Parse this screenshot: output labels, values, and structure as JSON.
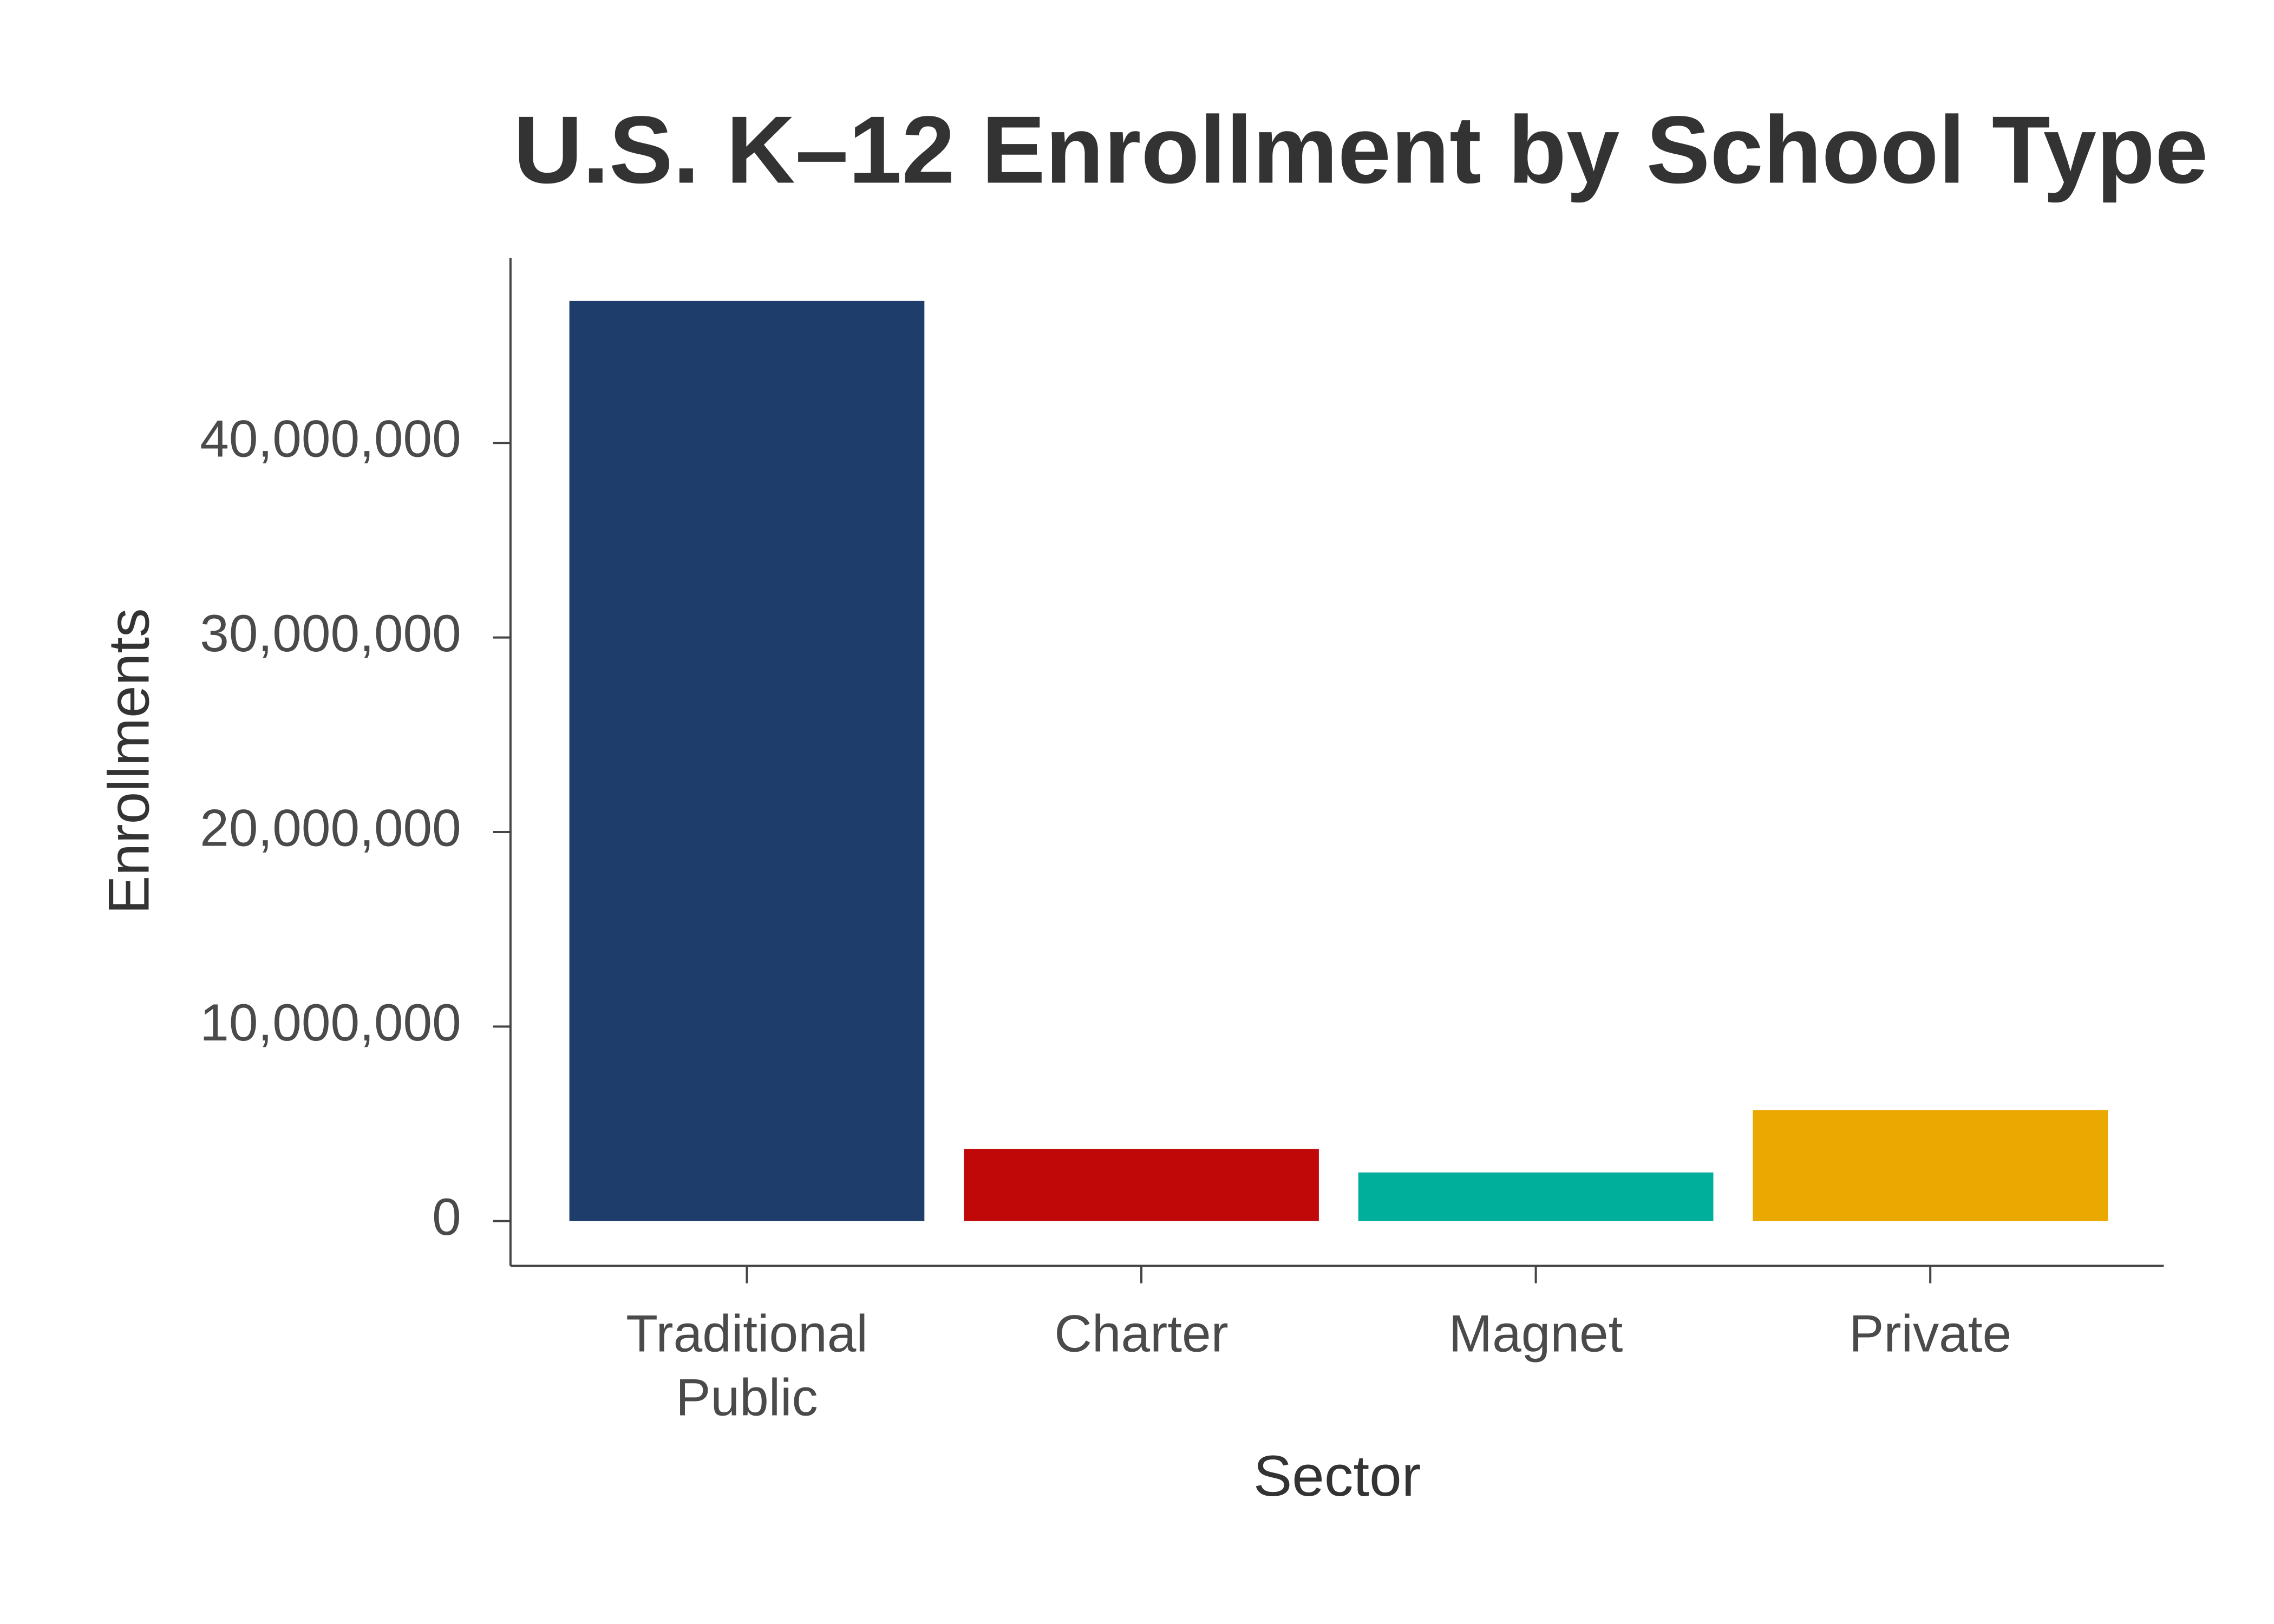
{
  "chart_data": {
    "type": "bar",
    "title": "U.S. K–12 Enrollment by School Type",
    "x_label": "Sector",
    "y_label": "Enrollments",
    "categories": [
      "Traditional Public",
      "Charter",
      "Magnet",
      "Private"
    ],
    "values": [
      47300000,
      3700000,
      2500000,
      5700000
    ],
    "colors": [
      "#1f3d6b",
      "#c00808",
      "#00ae9c",
      "#eaa800"
    ],
    "ylim": [
      -2300000,
      49500000
    ],
    "yticks": [
      0,
      {
        "value": 10000000,
        "label": "10,000,000"
      },
      {
        "value": 20000000,
        "label": "20,000,000"
      },
      {
        "value": 30000000,
        "label": "30,000,000"
      },
      {
        "value": 40000000,
        "label": "40,000,000"
      }
    ],
    "grid": false
  }
}
